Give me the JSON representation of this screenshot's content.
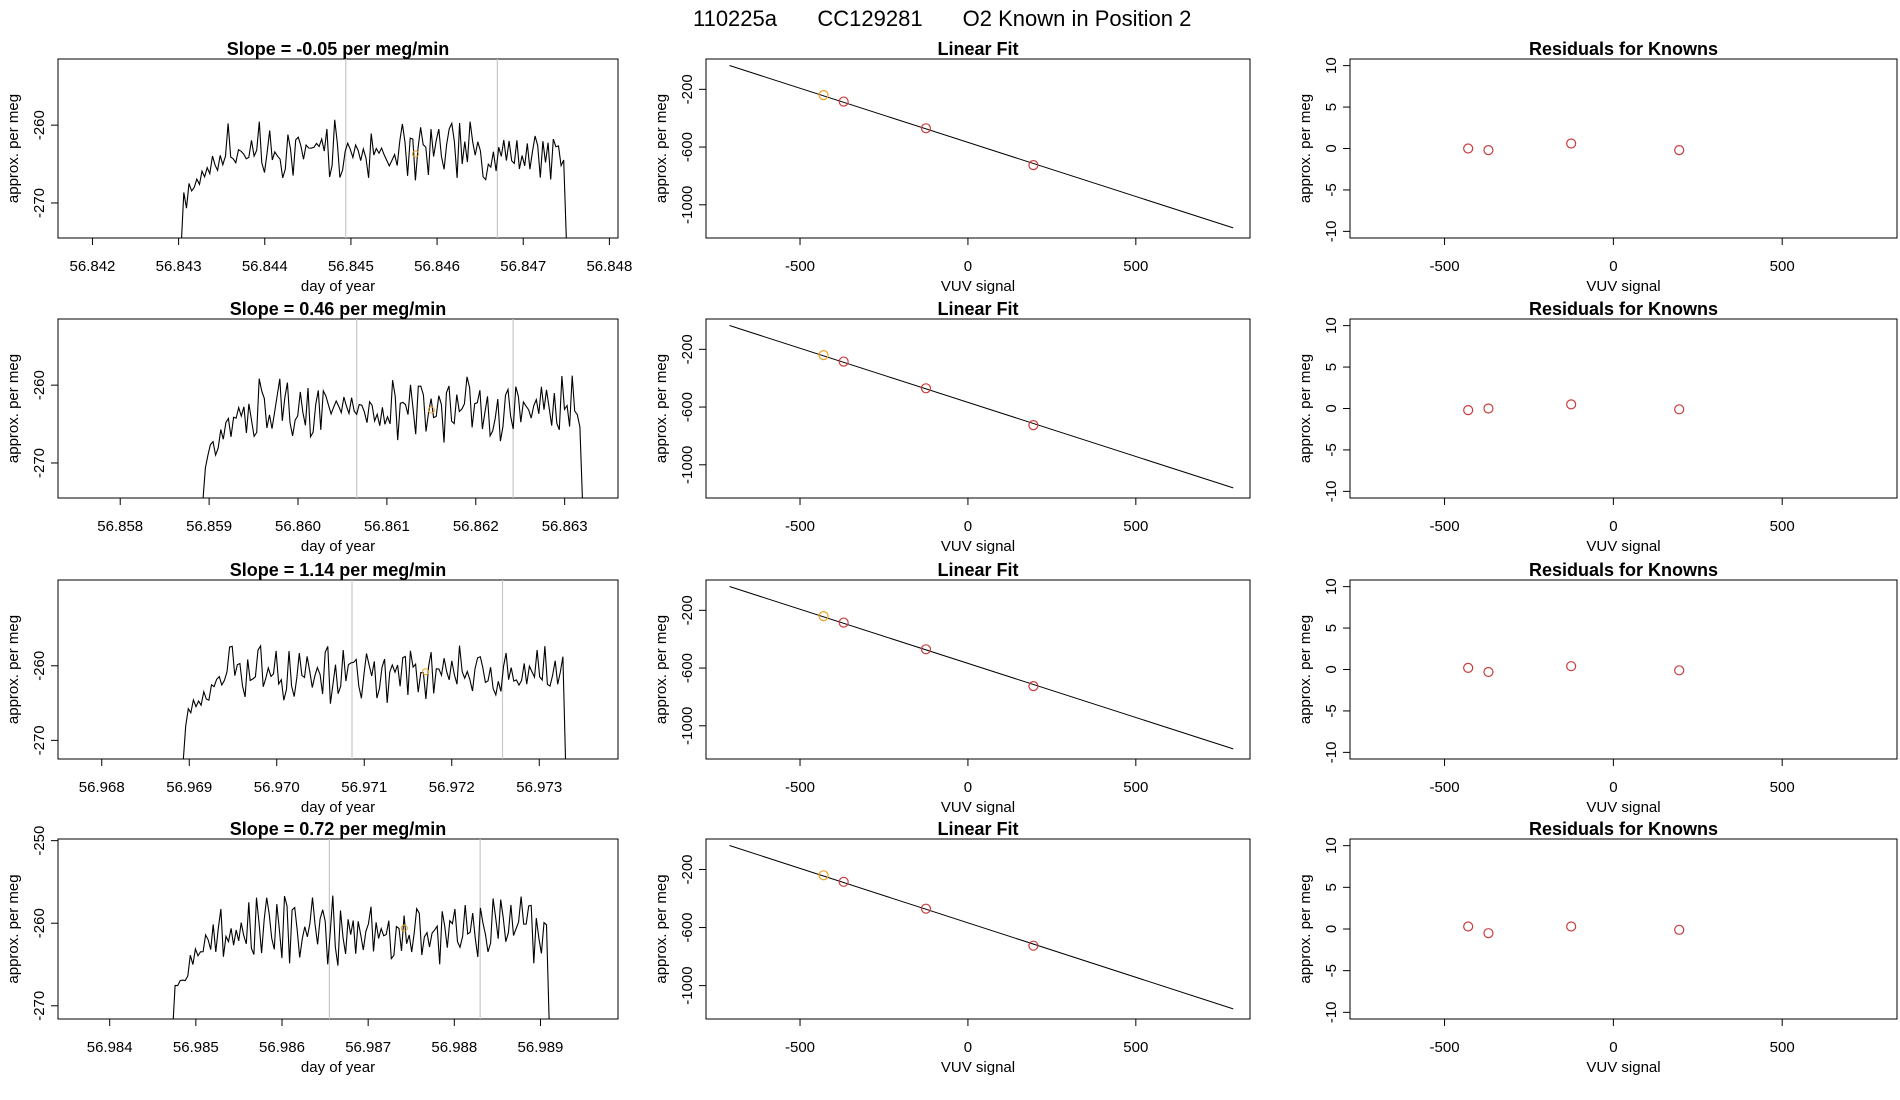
{
  "page": {
    "title_parts": [
      "110225a",
      "CC129281",
      "O2 Known in Position  2"
    ]
  },
  "colors": {
    "axis": "#000000",
    "trace": "#000000",
    "vline": "#c8c8c8",
    "known_point": "#cc3b3b",
    "highlight_point": "#f0a020"
  },
  "chart_data": [
    {
      "type": "line",
      "title": "Slope =  -0.05  per meg/min",
      "xlabel": "day of year",
      "ylabel": "approx. per meg",
      "xlim": [
        56.8416,
        56.8481
      ],
      "ylim": [
        -274.5,
        -251.5
      ],
      "xticks": [
        "56.842",
        "56.843",
        "56.844",
        "56.845",
        "56.846",
        "56.847",
        "56.848"
      ],
      "yticks": [
        "-260",
        "-270"
      ],
      "vlines": [
        56.84494,
        56.8467
      ],
      "highlight": {
        "x": 56.84575,
        "y": -263.7
      },
      "start": 56.843,
      "end": 56.8475,
      "series": {
        "x": [],
        "y": []
      }
    },
    {
      "type": "line",
      "title": "Slope =  0.46  per meg/min",
      "xlabel": "day of year",
      "ylabel": "approx. per meg",
      "xlim": [
        56.8573,
        56.8636
      ],
      "ylim": [
        -274.5,
        -251.5
      ],
      "xticks": [
        "56.858",
        "56.859",
        "56.860",
        "56.861",
        "56.862",
        "56.863"
      ],
      "yticks": [
        "-260",
        "-270"
      ],
      "vlines": [
        56.86066,
        56.86242
      ],
      "highlight": {
        "x": 56.8615,
        "y": -263.2
      },
      "start": 56.8589,
      "end": 56.8632,
      "series": {
        "x": [],
        "y": []
      }
    },
    {
      "type": "line",
      "title": "Slope =  1.14  per meg/min",
      "xlabel": "day of year",
      "ylabel": "approx. per meg",
      "xlim": [
        56.9675,
        56.9739
      ],
      "ylim": [
        -272.5,
        -248.5
      ],
      "xticks": [
        "56.968",
        "56.969",
        "56.970",
        "56.971",
        "56.972",
        "56.973"
      ],
      "yticks": [
        "-260",
        "-270"
      ],
      "vlines": [
        56.97086,
        56.97258
      ],
      "highlight": {
        "x": 56.9717,
        "y": -260.8
      },
      "start": 56.9689,
      "end": 56.9733,
      "series": {
        "x": [],
        "y": []
      }
    },
    {
      "type": "line",
      "title": "Slope =  0.72  per meg/min",
      "xlabel": "day of year",
      "ylabel": "approx. per meg",
      "xlim": [
        56.9834,
        56.9899
      ],
      "ylim": [
        -271.6,
        -249.8
      ],
      "xticks": [
        "56.984",
        "56.985",
        "56.986",
        "56.987",
        "56.988",
        "56.989"
      ],
      "yticks": [
        "-250",
        "-260",
        "-270"
      ],
      "vlines": [
        56.98655,
        56.9883
      ],
      "highlight": {
        "x": 56.98742,
        "y": -260.6
      },
      "start": 56.9847,
      "end": 56.9891,
      "series": {
        "x": [],
        "y": []
      }
    },
    {
      "type": "scatter",
      "title": "Linear Fit",
      "xlabel": "VUV signal",
      "ylabel": "approx. per meg",
      "xlim": [
        -780,
        840
      ],
      "ylim": [
        -1230,
        10
      ],
      "xticks": [
        -500,
        0,
        500
      ],
      "yticks": [
        -200,
        -600,
        -1000
      ],
      "points": {
        "x": [
          -430,
          -370,
          -125,
          195
        ],
        "y": [
          -240,
          -285,
          -470,
          -725
        ]
      },
      "highlight_index": 0,
      "fit_line": {
        "x": [
          -710,
          790
        ],
        "y": [
          -35,
          -1160
        ]
      }
    },
    {
      "type": "scatter",
      "title": "Linear Fit",
      "xlabel": "VUV signal",
      "ylabel": "approx. per meg",
      "xlim": [
        -780,
        840
      ],
      "ylim": [
        -1230,
        10
      ],
      "xticks": [
        -500,
        0,
        500
      ],
      "yticks": [
        -200,
        -600,
        -1000
      ],
      "points": {
        "x": [
          -430,
          -370,
          -125,
          195
        ],
        "y": [
          -240,
          -285,
          -470,
          -725
        ]
      },
      "highlight_index": 0,
      "fit_line": {
        "x": [
          -710,
          790
        ],
        "y": [
          -35,
          -1160
        ]
      }
    },
    {
      "type": "scatter",
      "title": "Linear Fit",
      "xlabel": "VUV signal",
      "ylabel": "approx. per meg",
      "xlim": [
        -780,
        840
      ],
      "ylim": [
        -1230,
        10
      ],
      "xticks": [
        -500,
        0,
        500
      ],
      "yticks": [
        -200,
        -600,
        -1000
      ],
      "points": {
        "x": [
          -430,
          -370,
          -125,
          195
        ],
        "y": [
          -240,
          -285,
          -470,
          -725
        ]
      },
      "highlight_index": 0,
      "fit_line": {
        "x": [
          -710,
          790
        ],
        "y": [
          -35,
          -1160
        ]
      }
    },
    {
      "type": "scatter",
      "title": "Linear Fit",
      "xlabel": "VUV signal",
      "ylabel": "approx. per meg",
      "xlim": [
        -780,
        840
      ],
      "ylim": [
        -1230,
        10
      ],
      "xticks": [
        -500,
        0,
        500
      ],
      "yticks": [
        -200,
        -600,
        -1000
      ],
      "points": {
        "x": [
          -430,
          -370,
          -125,
          195
        ],
        "y": [
          -240,
          -285,
          -470,
          -725
        ]
      },
      "highlight_index": 0,
      "fit_line": {
        "x": [
          -710,
          790
        ],
        "y": [
          -35,
          -1160
        ]
      }
    },
    {
      "type": "scatter",
      "title": "Residuals for Knowns",
      "xlabel": "VUV signal",
      "ylabel": "approx. per meg",
      "xlim": [
        -780,
        840
      ],
      "ylim": [
        -10.8,
        10.8
      ],
      "xticks": [
        -500,
        0,
        500
      ],
      "yticks": [
        -10,
        -5,
        0,
        5,
        10
      ],
      "points": {
        "x": [
          -430,
          -370,
          -125,
          195
        ],
        "y": [
          0.0,
          -0.2,
          0.6,
          -0.2
        ]
      }
    },
    {
      "type": "scatter",
      "title": "Residuals for Knowns",
      "xlabel": "VUV signal",
      "ylabel": "approx. per meg",
      "xlim": [
        -780,
        840
      ],
      "ylim": [
        -10.8,
        10.8
      ],
      "xticks": [
        -500,
        0,
        500
      ],
      "yticks": [
        -10,
        -5,
        0,
        5,
        10
      ],
      "points": {
        "x": [
          -430,
          -370,
          -125,
          195
        ],
        "y": [
          -0.2,
          0.0,
          0.5,
          -0.1
        ]
      }
    },
    {
      "type": "scatter",
      "title": "Residuals for Knowns",
      "xlabel": "VUV signal",
      "ylabel": "approx. per meg",
      "xlim": [
        -780,
        840
      ],
      "ylim": [
        -10.8,
        10.8
      ],
      "xticks": [
        -500,
        0,
        500
      ],
      "yticks": [
        -10,
        -5,
        0,
        5,
        10
      ],
      "points": {
        "x": [
          -430,
          -370,
          -125,
          195
        ],
        "y": [
          0.2,
          -0.3,
          0.4,
          -0.1
        ]
      }
    },
    {
      "type": "scatter",
      "title": "Residuals for Knowns",
      "xlabel": "VUV signal",
      "ylabel": "approx. per meg",
      "xlim": [
        -780,
        840
      ],
      "ylim": [
        -10.8,
        10.8
      ],
      "xticks": [
        -500,
        0,
        500
      ],
      "yticks": [
        -10,
        -5,
        0,
        5,
        10
      ],
      "points": {
        "x": [
          -430,
          -370,
          -125,
          195
        ],
        "y": [
          0.3,
          -0.5,
          0.3,
          -0.1
        ]
      }
    }
  ]
}
